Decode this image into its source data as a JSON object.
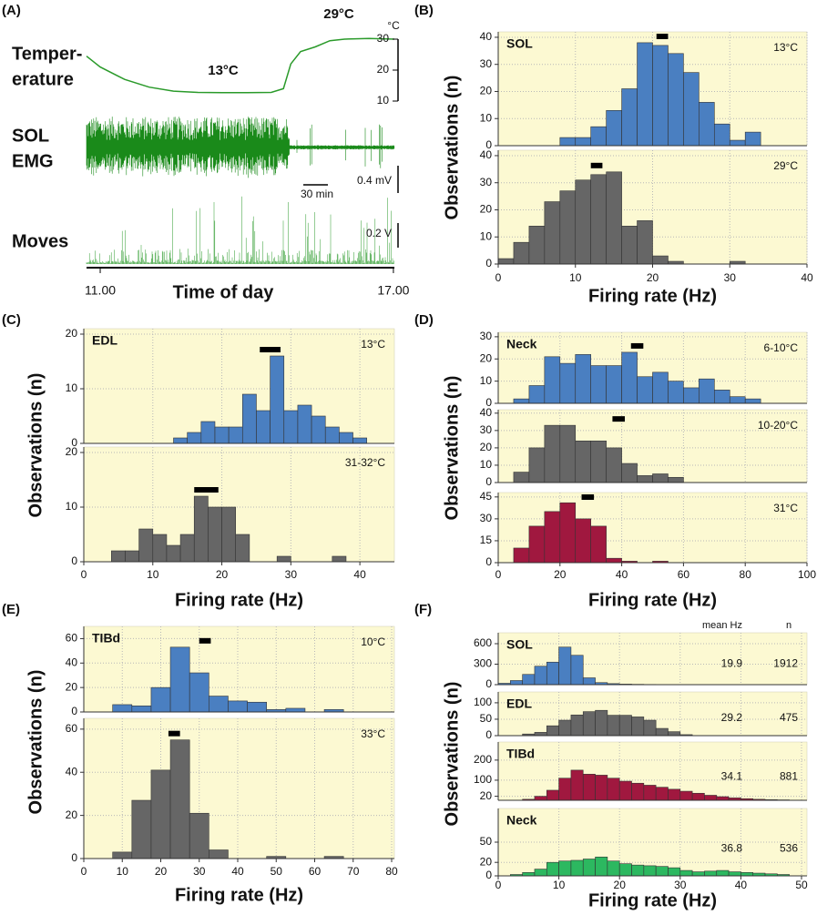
{
  "chart_data": [
    {
      "type": "trace",
      "panel": "(A)",
      "temperature_label": [
        "Temper-",
        "erature"
      ],
      "emg_label": [
        "SOL",
        "EMG"
      ],
      "moves_label": "Moves",
      "unit": "°C",
      "annotations": [
        "13°C",
        "29°C"
      ],
      "scale_labels": [
        "30 min",
        "0.4 mV",
        "0.2 V"
      ],
      "xlabel": "Time of day",
      "color": "#2a9a2a",
      "x": [
        10.72,
        11,
        11.5,
        12,
        12.5,
        13,
        13.5,
        14,
        14.5,
        14.75,
        14.9,
        15.1,
        15.4,
        15.7,
        16,
        16.5,
        17.02
      ],
      "values": [
        24.5,
        21,
        17,
        14.5,
        13.2,
        12.8,
        12.7,
        12.7,
        12.8,
        14,
        22,
        26,
        27.5,
        29.5,
        30,
        30.2,
        30
      ],
      "xlim": [
        10.72,
        17.02
      ],
      "xticks": [
        {
          "value": 11,
          "label": "11.00"
        },
        {
          "value": 17,
          "label": "17.00"
        }
      ],
      "ylim": [
        10,
        30
      ],
      "yticks": [
        10,
        20,
        30
      ]
    },
    {
      "type": "histogram",
      "panel": "(B)",
      "xlabel": "Firing rate (Hz)",
      "ylabel": "Observations (n)",
      "xlim": [
        0,
        40
      ],
      "xticks": [
        0,
        10,
        20,
        30,
        40
      ],
      "grid": true,
      "plots": [
        {
          "label": "SOL",
          "condition": "13°C",
          "color": "#4a7fc1",
          "bins": [
            8,
            10,
            12,
            14,
            16,
            18,
            20,
            22,
            24,
            26,
            28,
            30,
            32,
            34
          ],
          "values": [
            3,
            3,
            7,
            13,
            21,
            38,
            37,
            34,
            27,
            16,
            8,
            2,
            5
          ],
          "ylim": [
            0,
            42
          ],
          "yticks": [
            0,
            10,
            20,
            30,
            40
          ],
          "mean_bar": [
            20.5,
            22
          ]
        },
        {
          "condition": "29°C",
          "color": "#666666",
          "bins": [
            0,
            2,
            4,
            6,
            8,
            10,
            12,
            14,
            16,
            18,
            20,
            22,
            24,
            26,
            28,
            30,
            32
          ],
          "values": [
            2,
            8,
            14,
            23,
            27,
            31,
            33,
            34,
            14,
            16,
            3,
            1,
            0,
            0,
            0,
            1
          ],
          "ylim": [
            0,
            42
          ],
          "yticks": [
            0,
            10,
            20,
            30,
            40
          ],
          "mean_bar": [
            12,
            13.5
          ]
        }
      ]
    },
    {
      "type": "histogram",
      "panel": "(C)",
      "xlabel": "Firing rate (Hz)",
      "ylabel": "Observations (n)",
      "xlim": [
        0,
        45
      ],
      "xticks": [
        0,
        10,
        20,
        30,
        40
      ],
      "grid": true,
      "plots": [
        {
          "label": "EDL",
          "condition": "13°C",
          "color": "#4a7fc1",
          "bins": [
            13,
            15,
            17,
            19,
            21,
            23,
            25,
            27,
            29,
            31,
            33,
            35,
            37,
            39,
            41
          ],
          "values": [
            1,
            2,
            4,
            3,
            3,
            9,
            6,
            16,
            6,
            7,
            5,
            3,
            2,
            1
          ],
          "ylim": [
            0,
            21
          ],
          "yticks": [
            0,
            10,
            20
          ],
          "mean_bar": [
            25.5,
            28.5
          ]
        },
        {
          "condition": "31-32°C",
          "color": "#666666",
          "bins": [
            4,
            6,
            8,
            10,
            12,
            14,
            16,
            18,
            20,
            22,
            24,
            26,
            28,
            30,
            32,
            34,
            36,
            38
          ],
          "values": [
            2,
            2,
            6,
            5,
            3,
            5,
            12,
            10,
            10,
            5,
            0,
            0,
            1,
            0,
            0,
            0,
            1
          ],
          "ylim": [
            0,
            21
          ],
          "yticks": [
            0,
            10,
            20
          ],
          "mean_bar": [
            16,
            19.5
          ]
        }
      ]
    },
    {
      "type": "histogram",
      "panel": "(D)",
      "xlabel": "Firing rate (Hz)",
      "ylabel": "Observations (n)",
      "xlim": [
        0,
        100
      ],
      "xticks": [
        0,
        20,
        40,
        60,
        80,
        100
      ],
      "grid": true,
      "plots": [
        {
          "label": "Neck",
          "condition": "6-10°C",
          "color": "#4a7fc1",
          "bins": [
            5,
            10,
            15,
            20,
            25,
            30,
            35,
            40,
            45,
            50,
            55,
            60,
            65,
            70,
            75,
            80,
            85
          ],
          "values": [
            2,
            8,
            21,
            18,
            22,
            17,
            17,
            23,
            12,
            14,
            10,
            7,
            11,
            6,
            3,
            2
          ],
          "ylim": [
            0,
            32
          ],
          "yticks": [
            0,
            10,
            20,
            30
          ],
          "mean_bar": [
            43,
            47
          ]
        },
        {
          "condition": "10-20°C",
          "color": "#666666",
          "bins": [
            5,
            10,
            15,
            20,
            25,
            30,
            35,
            40,
            45,
            50,
            55,
            60
          ],
          "values": [
            6,
            20,
            33,
            33,
            24,
            24,
            20,
            11,
            4,
            5,
            3
          ],
          "ylim": [
            0,
            42
          ],
          "yticks": [
            0,
            10,
            20,
            30,
            40
          ],
          "mean_bar": [
            37,
            41
          ]
        },
        {
          "condition": "31°C",
          "color": "#a0183f",
          "bins": [
            5,
            10,
            15,
            20,
            25,
            30,
            35,
            40,
            45,
            50,
            55
          ],
          "values": [
            10,
            25,
            35,
            41,
            30,
            25,
            3,
            1,
            0,
            1
          ],
          "ylim": [
            0,
            48
          ],
          "yticks": [
            0,
            15,
            30,
            45
          ],
          "mean_bar": [
            27,
            31
          ]
        }
      ]
    },
    {
      "type": "histogram",
      "panel": "(E)",
      "xlabel": "Firing rate (Hz)",
      "ylabel": "Observations (n)",
      "xlim": [
        0,
        80
      ],
      "xticks": [
        0,
        10,
        20,
        30,
        40,
        50,
        60,
        70,
        80
      ],
      "grid": true,
      "plots": [
        {
          "label": "TIBd",
          "condition": "10°C",
          "color": "#4a7fc1",
          "bins": [
            7.5,
            12.5,
            17.5,
            22.5,
            27.5,
            32.5,
            37.5,
            42.5,
            47.5,
            52.5,
            57.5,
            62.5,
            67.5
          ],
          "values": [
            6,
            5,
            20,
            53,
            32,
            13,
            9,
            8,
            2,
            3,
            0,
            2
          ],
          "ylim": [
            0,
            70
          ],
          "yticks": [
            0,
            20,
            40,
            60
          ],
          "mean_bar": [
            30,
            33
          ]
        },
        {
          "condition": "33°C",
          "color": "#666666",
          "bins": [
            7.5,
            12.5,
            17.5,
            22.5,
            27.5,
            32.5,
            37.5,
            42.5,
            47.5,
            52.5,
            57.5,
            62.5,
            67.5
          ],
          "values": [
            3,
            27,
            41,
            55,
            21,
            4,
            0,
            0,
            1,
            0,
            0,
            1
          ],
          "ylim": [
            0,
            65
          ],
          "yticks": [
            0,
            20,
            40,
            60
          ],
          "mean_bar": [
            22,
            25
          ]
        }
      ]
    },
    {
      "type": "histogram",
      "panel": "(F)",
      "xlabel": "Firing rate (Hz)",
      "ylabel": "Observations (n)",
      "xlim": [
        0,
        50
      ],
      "xticks": [
        0,
        10,
        20,
        30,
        40,
        50
      ],
      "grid": true,
      "columns": [
        "mean Hz",
        "n"
      ],
      "plots": [
        {
          "label": "SOL",
          "color": "#4a7fc1",
          "bins": [
            0,
            2,
            4,
            6,
            8,
            10,
            12,
            14,
            16,
            18,
            20,
            22,
            24,
            26,
            28
          ],
          "values": [
            20,
            60,
            150,
            270,
            330,
            550,
            430,
            100,
            30,
            15,
            8,
            5,
            3,
            2
          ],
          "ylim": [
            0,
            760
          ],
          "yticks": [
            0,
            300,
            600
          ],
          "mean_hz": 19.9,
          "n": 1912
        },
        {
          "label": "EDL",
          "color": "#666666",
          "bins": [
            4,
            6,
            8,
            10,
            12,
            14,
            16,
            18,
            20,
            22,
            24,
            26,
            28,
            30,
            32
          ],
          "values": [
            5,
            10,
            30,
            47,
            63,
            73,
            77,
            62,
            62,
            57,
            47,
            22,
            12,
            3
          ],
          "ylim": [
            0,
            133
          ],
          "yticks": [
            0,
            50,
            100
          ],
          "mean_hz": 29.2,
          "n": 475
        },
        {
          "label": "TIBd",
          "color": "#a0183f",
          "bins": [
            4,
            6,
            8,
            10,
            12,
            14,
            16,
            18,
            20,
            22,
            24,
            26,
            28,
            30,
            32,
            34,
            36,
            38,
            40,
            42,
            44,
            46,
            48
          ],
          "values": [
            5,
            20,
            50,
            110,
            150,
            130,
            125,
            110,
            95,
            85,
            75,
            65,
            55,
            45,
            35,
            25,
            18,
            12,
            8,
            5,
            3,
            2
          ],
          "ylim": [
            0,
            290
          ],
          "yticks": [
            20,
            100,
            200
          ],
          "mean_hz": 34.1,
          "n": 881
        },
        {
          "label": "Neck",
          "color": "#2cb860",
          "bins": [
            2,
            4,
            6,
            8,
            10,
            12,
            14,
            16,
            18,
            20,
            22,
            24,
            26,
            28,
            30,
            32,
            34,
            36,
            38,
            40,
            42,
            44,
            46,
            48
          ],
          "values": [
            2,
            5,
            10,
            20,
            22,
            23,
            25,
            28,
            22,
            18,
            16,
            15,
            14,
            12,
            8,
            6,
            7,
            8,
            6,
            5,
            4,
            3,
            2
          ],
          "ylim": [
            0,
            100
          ],
          "yticks": [
            0,
            20,
            50
          ],
          "mean_hz": 36.8,
          "n": 536
        }
      ]
    }
  ]
}
